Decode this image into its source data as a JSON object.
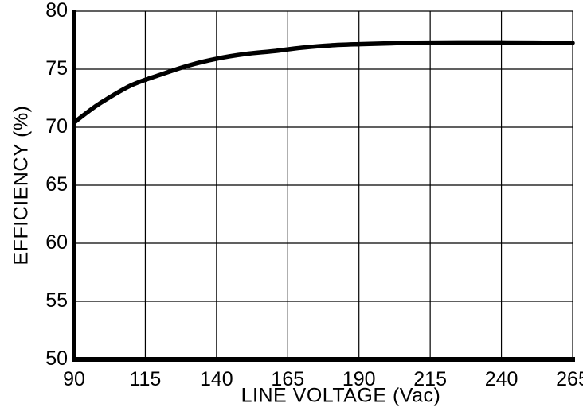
{
  "chart_data": {
    "type": "line",
    "title": "",
    "xlabel": "LINE VOLTAGE (Vac)",
    "ylabel": "EFFICIENCY (%)",
    "xlim": [
      90,
      265
    ],
    "ylim": [
      50,
      80
    ],
    "xticks": [
      90,
      115,
      140,
      165,
      190,
      215,
      240,
      265
    ],
    "yticks": [
      50,
      55,
      60,
      65,
      70,
      75,
      80
    ],
    "grid": true,
    "legend": false,
    "series": [
      {
        "name": "efficiency-vs-line-voltage",
        "x": [
          90,
          95,
          100,
          110,
          120,
          130,
          140,
          150,
          160,
          170,
          180,
          190,
          200,
          210,
          225,
          240,
          265
        ],
        "y": [
          70.4,
          71.35,
          72.2,
          73.6,
          74.5,
          75.3,
          75.9,
          76.3,
          76.55,
          76.85,
          77.05,
          77.15,
          77.22,
          77.28,
          77.3,
          77.3,
          77.25
        ],
        "color": "#000000",
        "line_width": 5.5
      }
    ]
  },
  "colors": {
    "background": "#ffffff",
    "axis": "#000000",
    "grid": "#000000",
    "text": "#000000"
  }
}
